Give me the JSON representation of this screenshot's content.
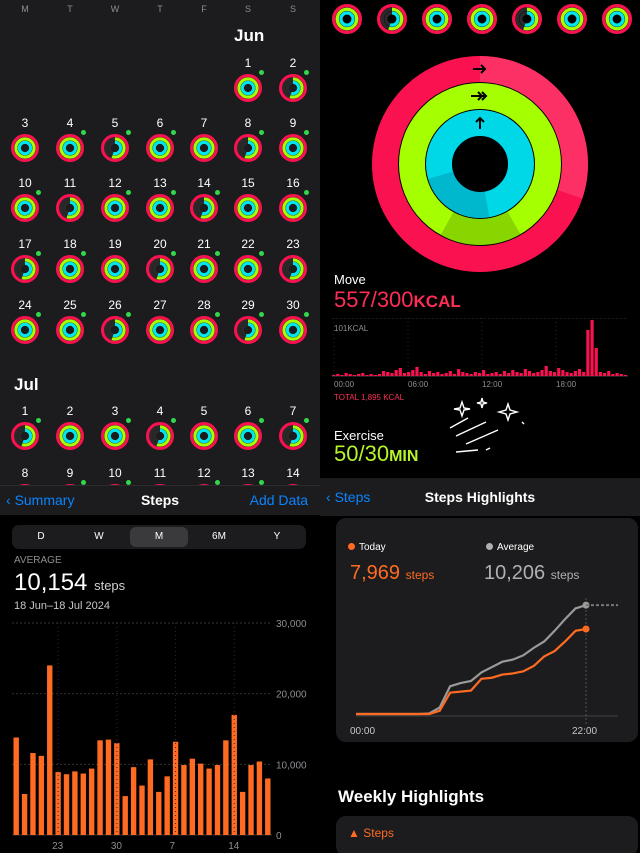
{
  "calendar": {
    "weekdays": [
      "M",
      "T",
      "W",
      "T",
      "F",
      "S",
      "S"
    ],
    "month1": "Jun",
    "month2": "Jul",
    "jun_days": [
      "1",
      "2",
      "3",
      "4",
      "5",
      "6",
      "7",
      "8",
      "9",
      "10",
      "11",
      "12",
      "13",
      "14",
      "15",
      "16",
      "17",
      "18",
      "19",
      "20",
      "21",
      "22",
      "23",
      "24",
      "25",
      "26",
      "27",
      "28",
      "29",
      "30"
    ],
    "jul_days": [
      "1",
      "2",
      "3",
      "4",
      "5",
      "6",
      "7",
      "8",
      "9",
      "10",
      "11",
      "12",
      "13",
      "14"
    ],
    "nav": {
      "back": "Summary",
      "title": "Steps",
      "right": "Add Data"
    }
  },
  "rings": {
    "colors": {
      "move": "#fa114f",
      "exercise": "#a6ff00",
      "stand": "#00f0ff"
    },
    "move_label": "Move",
    "move_value": "557/300",
    "move_unit": "KCAL",
    "chart_max_label": "101KCAL",
    "x_ticks": [
      "00:00",
      "06:00",
      "12:00",
      "18:00"
    ],
    "total_label": "TOTAL 1,895 KCAL",
    "exercise_label": "Exercise",
    "exercise_value": "50/30",
    "exercise_unit": "MIN"
  },
  "steps": {
    "segments": [
      "D",
      "W",
      "M",
      "6M",
      "Y"
    ],
    "active_segment": "M",
    "average_label": "AVERAGE",
    "average_value": "10,154",
    "average_unit": "steps",
    "range": "18 Jun–18 Jul 2024",
    "bar_color": "#ff6b22",
    "y_ticks": [
      "30,000",
      "20,000",
      "10,000",
      "0"
    ],
    "x_ticks": [
      "23",
      "30",
      "7",
      "14"
    ]
  },
  "highlights": {
    "nav": {
      "back": "Steps",
      "title": "Steps Highlights"
    },
    "today_label": "Today",
    "today_value": "7,969",
    "today_unit": "steps",
    "average_label": "Average",
    "average_value": "10,206",
    "average_unit": "steps",
    "x_ticks": [
      "00:00",
      "22:00"
    ],
    "weekly_title": "Weekly Highlights",
    "steps_card_label": "Steps"
  },
  "chart_data": [
    {
      "type": "bar",
      "ylim": [
        0,
        30000
      ],
      "values": [
        13800,
        5800,
        11600,
        11200,
        24000,
        8900,
        8600,
        9000,
        8700,
        9400,
        13400,
        13500,
        13000,
        5500,
        9600,
        7000,
        10700,
        6100,
        8300,
        13200,
        9900,
        10800,
        10100,
        9400,
        9900,
        13400,
        17000,
        6100,
        9900,
        10400,
        8000
      ],
      "x_tick_labels": [
        "23",
        "30",
        "7",
        "14"
      ]
    },
    {
      "type": "line",
      "x_range": [
        "00:00",
        "22:00"
      ],
      "series": [
        {
          "name": "Today",
          "x": [
            0,
            4,
            6,
            7,
            8,
            9,
            10,
            11,
            12,
            13,
            14,
            15,
            16,
            17,
            18,
            19,
            20,
            21,
            22
          ],
          "y": [
            0,
            0,
            0,
            0,
            300,
            2000,
            2100,
            2200,
            3300,
            3400,
            3700,
            3800,
            4000,
            4500,
            5400,
            5900,
            6800,
            7800,
            7969
          ]
        },
        {
          "name": "Average",
          "x": [
            0,
            4,
            6,
            7,
            8,
            9,
            10,
            11,
            12,
            13,
            14,
            15,
            16,
            17,
            18,
            19,
            20,
            21,
            22
          ],
          "y": [
            0,
            0,
            0,
            50,
            600,
            2600,
            2900,
            3100,
            3900,
            4400,
            4900,
            5100,
            5500,
            6200,
            6800,
            7800,
            8900,
            9900,
            10206
          ]
        }
      ]
    }
  ]
}
